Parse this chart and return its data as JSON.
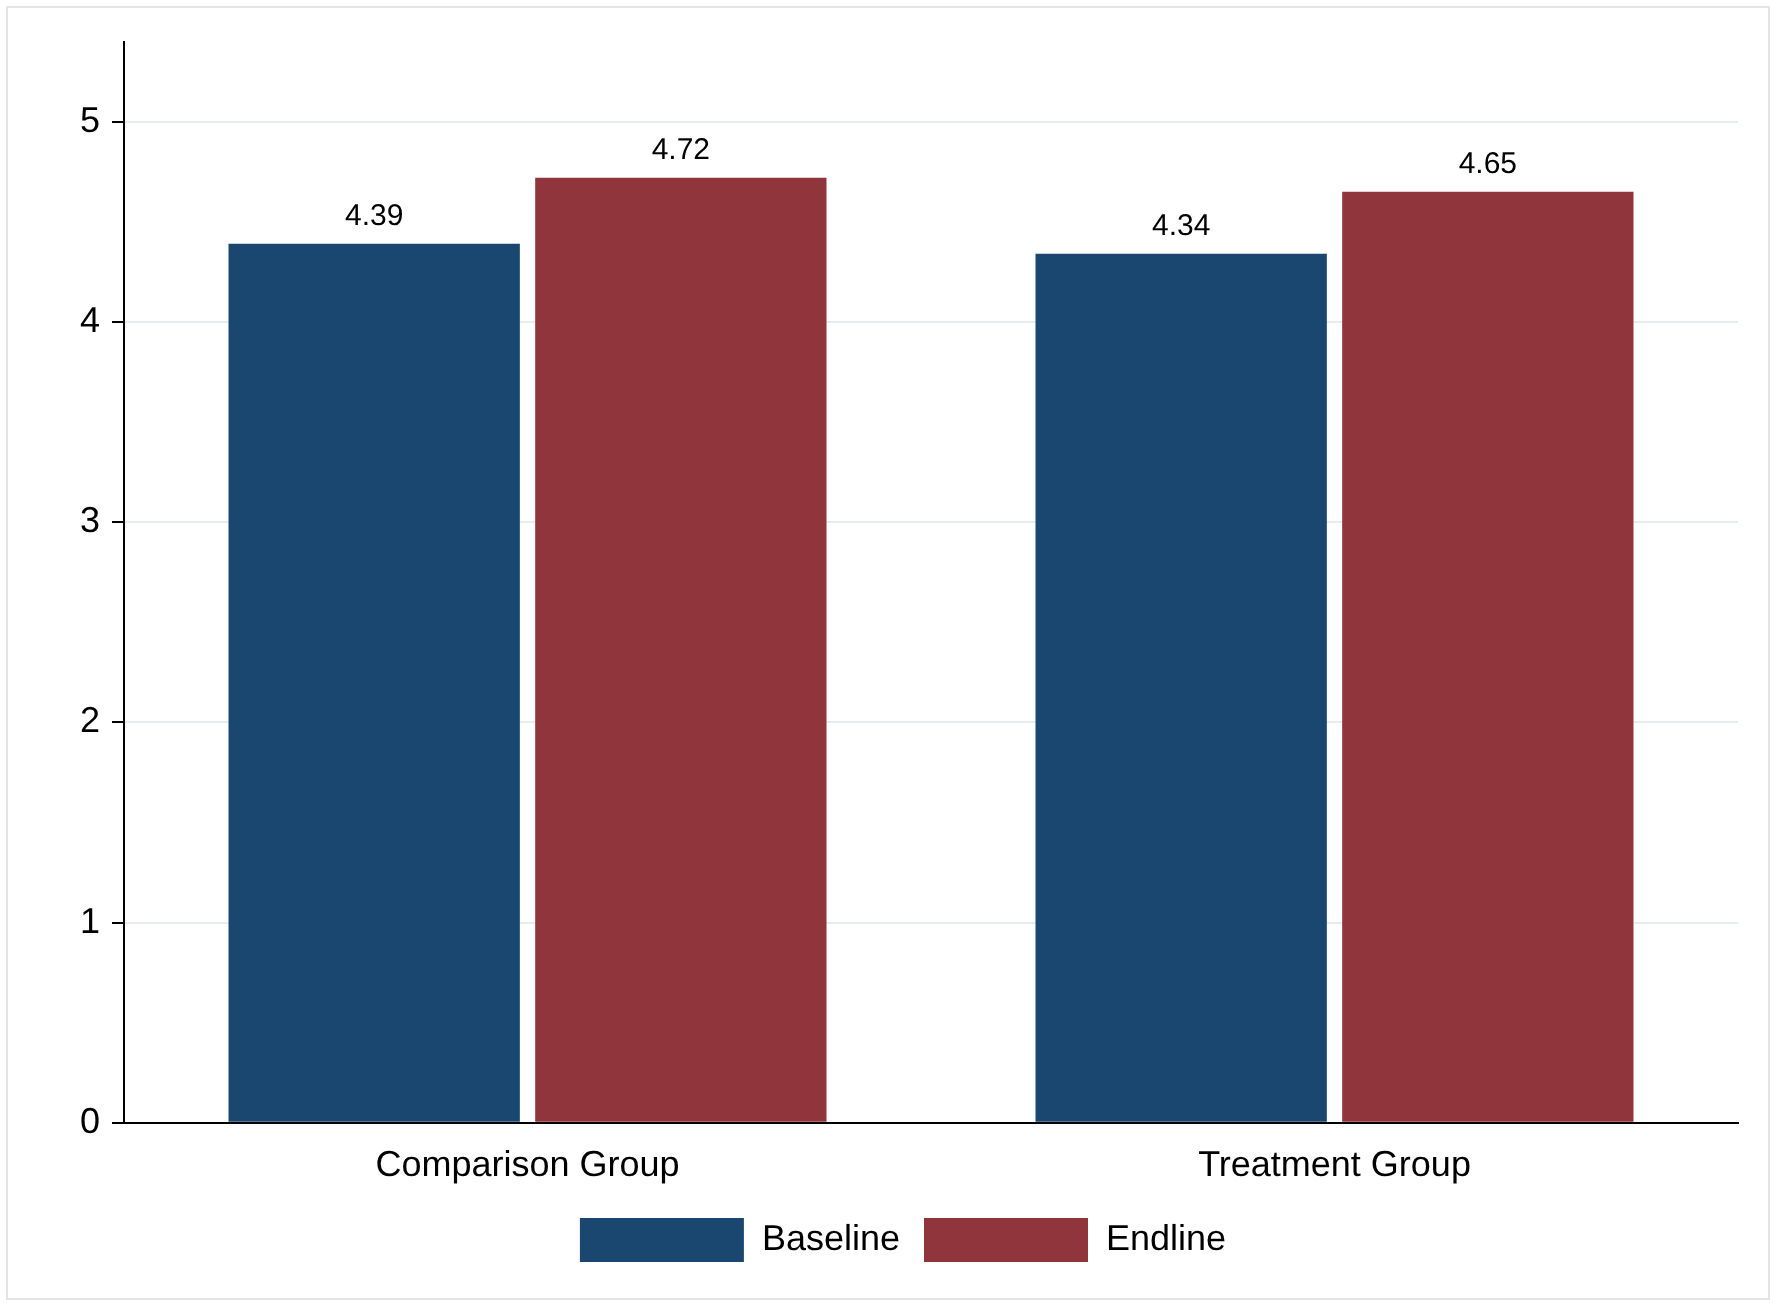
{
  "chart_data": {
    "type": "bar",
    "categories": [
      "Comparison Group",
      "Treatment Group"
    ],
    "series": [
      {
        "name": "Baseline",
        "color": "#1a476f",
        "values": [
          4.39,
          4.34
        ]
      },
      {
        "name": "Endline",
        "color": "#90353b",
        "values": [
          4.72,
          4.65
        ]
      }
    ],
    "ylim": [
      0,
      5.4
    ],
    "yticks": [
      0,
      1,
      2,
      3,
      4,
      5
    ],
    "grid": "y",
    "legend": "bottom",
    "data_labels": true
  }
}
